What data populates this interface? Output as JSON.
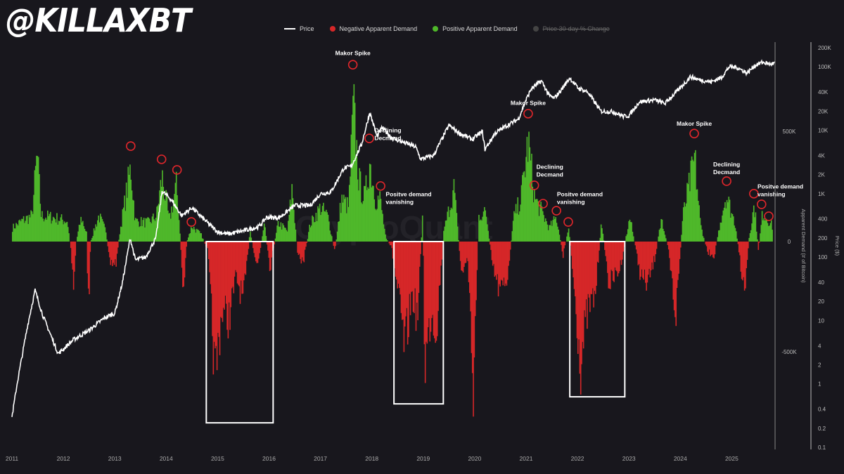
{
  "logo": "@KILLAXBT",
  "legend": [
    {
      "label": "Price",
      "type": "line",
      "color": "#ffffff"
    },
    {
      "label": "Negative Apparent Demand",
      "type": "dot",
      "color": "#d62728"
    },
    {
      "label": "Positive Apparent Demand",
      "type": "dot",
      "color": "#4fb82a"
    },
    {
      "label": "Price 30-day % Change",
      "type": "dot",
      "color": "#444444",
      "disabled": true
    }
  ],
  "watermark": "CryptoQuant",
  "colors": {
    "background": "#18171d",
    "positive": "#4fb82a",
    "negative": "#d62728",
    "price": "#ffffff",
    "highlight": "#e0262b",
    "box": "#ffffff"
  },
  "chart_data": {
    "type": "area",
    "title": "",
    "xlabel": "",
    "ylabel_left": "Apparent Demand (# of Bitcoin)",
    "ylabel_right": "Price ($)",
    "x_ticks": [
      "2011",
      "2012",
      "2013",
      "2014",
      "2015",
      "2016",
      "2017",
      "2018",
      "2019",
      "2020",
      "2021",
      "2022",
      "2023",
      "2024",
      "2025"
    ],
    "demand_ticks": [
      {
        "v": 500,
        "label": "500K"
      },
      {
        "v": 0,
        "label": "0"
      },
      {
        "v": -500,
        "label": "-500K"
      }
    ],
    "demand_ylim_k": [
      -950,
      880
    ],
    "price_ticks": [
      "200K",
      "100K",
      "40K",
      "20K",
      "10K",
      "4K",
      "2K",
      "1K",
      "400",
      "200",
      "100",
      "40",
      "20",
      "10",
      "4",
      "2",
      "1",
      "0.4",
      "0.2",
      "0.1"
    ],
    "price_tick_values": [
      200000,
      100000,
      40000,
      20000,
      10000,
      4000,
      2000,
      1000,
      400,
      200,
      100,
      40,
      20,
      10,
      4,
      2,
      1,
      0.4,
      0.2,
      0.1
    ],
    "price_ylim": [
      0.1,
      200000
    ],
    "demand_series_k": [
      [
        2011.0,
        80
      ],
      [
        2011.18,
        120
      ],
      [
        2011.38,
        150
      ],
      [
        2011.48,
        506
      ],
      [
        2011.56,
        150
      ],
      [
        2011.79,
        140
      ],
      [
        2012.07,
        120
      ],
      [
        2012.14,
        -60
      ],
      [
        2012.19,
        -240
      ],
      [
        2012.24,
        0
      ],
      [
        2012.34,
        140
      ],
      [
        2012.44,
        50
      ],
      [
        2012.48,
        -400
      ],
      [
        2012.52,
        0
      ],
      [
        2012.68,
        150
      ],
      [
        2012.82,
        60
      ],
      [
        2012.89,
        -130
      ],
      [
        2013.02,
        -120
      ],
      [
        2013.09,
        60
      ],
      [
        2013.3,
        433
      ],
      [
        2013.39,
        120
      ],
      [
        2013.64,
        110
      ],
      [
        2013.8,
        150
      ],
      [
        2013.91,
        380
      ],
      [
        2014.05,
        120
      ],
      [
        2014.19,
        330
      ],
      [
        2014.26,
        50
      ],
      [
        2014.32,
        -305
      ],
      [
        2014.39,
        0
      ],
      [
        2014.49,
        90
      ],
      [
        2014.67,
        40
      ],
      [
        2014.8,
        -50
      ],
      [
        2014.94,
        -800
      ],
      [
        2015.07,
        -400
      ],
      [
        2015.21,
        -450
      ],
      [
        2015.35,
        -200
      ],
      [
        2015.49,
        -350
      ],
      [
        2015.62,
        60
      ],
      [
        2015.76,
        -150
      ],
      [
        2015.9,
        100
      ],
      [
        2016.01,
        -150
      ],
      [
        2016.17,
        110
      ],
      [
        2016.35,
        60
      ],
      [
        2016.44,
        315
      ],
      [
        2016.54,
        -50
      ],
      [
        2016.65,
        -130
      ],
      [
        2016.79,
        100
      ],
      [
        2016.99,
        200
      ],
      [
        2017.13,
        150
      ],
      [
        2017.27,
        -60
      ],
      [
        2017.4,
        250
      ],
      [
        2017.54,
        200
      ],
      [
        2017.63,
        793
      ],
      [
        2017.74,
        350
      ],
      [
        2017.85,
        250
      ],
      [
        2017.95,
        468
      ],
      [
        2018.06,
        250
      ],
      [
        2018.15,
        250
      ],
      [
        2018.26,
        20
      ],
      [
        2018.37,
        -30
      ],
      [
        2018.5,
        -300
      ],
      [
        2018.63,
        -640
      ],
      [
        2018.77,
        -300
      ],
      [
        2018.88,
        -450
      ],
      [
        2018.98,
        170
      ],
      [
        2019.02,
        -720
      ],
      [
        2019.15,
        -400
      ],
      [
        2019.24,
        -520
      ],
      [
        2019.39,
        60
      ],
      [
        2019.59,
        315
      ],
      [
        2019.73,
        -180
      ],
      [
        2019.86,
        -100
      ],
      [
        2019.96,
        -853
      ],
      [
        2020.07,
        150
      ],
      [
        2020.21,
        170
      ],
      [
        2020.34,
        -150
      ],
      [
        2020.48,
        -300
      ],
      [
        2020.62,
        -220
      ],
      [
        2020.75,
        140
      ],
      [
        2020.89,
        250
      ],
      [
        2021.03,
        580
      ],
      [
        2021.16,
        250
      ],
      [
        2021.3,
        170
      ],
      [
        2021.44,
        80
      ],
      [
        2021.58,
        140
      ],
      [
        2021.71,
        -80
      ],
      [
        2021.82,
        90
      ],
      [
        2021.92,
        -250
      ],
      [
        2022.05,
        -704
      ],
      [
        2022.19,
        -400
      ],
      [
        2022.33,
        -320
      ],
      [
        2022.46,
        120
      ],
      [
        2022.6,
        -250
      ],
      [
        2022.81,
        -160
      ],
      [
        2023.01,
        140
      ],
      [
        2023.22,
        -200
      ],
      [
        2023.35,
        -250
      ],
      [
        2023.49,
        -100
      ],
      [
        2023.63,
        140
      ],
      [
        2023.76,
        -50
      ],
      [
        2023.9,
        -433
      ],
      [
        2024.04,
        150
      ],
      [
        2024.27,
        484
      ],
      [
        2024.38,
        100
      ],
      [
        2024.52,
        -60
      ],
      [
        2024.65,
        -80
      ],
      [
        2024.79,
        150
      ],
      [
        2024.88,
        274
      ],
      [
        2025.06,
        100
      ],
      [
        2025.24,
        -305
      ],
      [
        2025.33,
        30
      ],
      [
        2025.43,
        216
      ],
      [
        2025.51,
        -50
      ],
      [
        2025.59,
        170
      ],
      [
        2025.73,
        115
      ],
      [
        2025.79,
        80
      ]
    ],
    "price_series": [
      [
        2011.0,
        0.3
      ],
      [
        2011.1,
        1
      ],
      [
        2011.3,
        8
      ],
      [
        2011.45,
        30
      ],
      [
        2011.6,
        12
      ],
      [
        2011.9,
        3
      ],
      [
        2012.2,
        5
      ],
      [
        2012.5,
        7
      ],
      [
        2012.8,
        11
      ],
      [
        2013.0,
        13
      ],
      [
        2013.15,
        40
      ],
      [
        2013.3,
        200
      ],
      [
        2013.4,
        90
      ],
      [
        2013.6,
        100
      ],
      [
        2013.8,
        200
      ],
      [
        2013.92,
        1100
      ],
      [
        2014.1,
        800
      ],
      [
        2014.3,
        450
      ],
      [
        2014.5,
        600
      ],
      [
        2014.8,
        350
      ],
      [
        2015.0,
        250
      ],
      [
        2015.2,
        230
      ],
      [
        2015.5,
        260
      ],
      [
        2015.8,
        300
      ],
      [
        2015.95,
        420
      ],
      [
        2016.2,
        420
      ],
      [
        2016.5,
        650
      ],
      [
        2016.8,
        650
      ],
      [
        2017.0,
        1000
      ],
      [
        2017.2,
        1050
      ],
      [
        2017.45,
        2500
      ],
      [
        2017.6,
        2700
      ],
      [
        2017.8,
        6000
      ],
      [
        2017.96,
        19000
      ],
      [
        2018.1,
        8000
      ],
      [
        2018.2,
        11000
      ],
      [
        2018.4,
        7500
      ],
      [
        2018.6,
        6500
      ],
      [
        2018.85,
        5500
      ],
      [
        2018.95,
        3500
      ],
      [
        2019.2,
        4000
      ],
      [
        2019.5,
        12000
      ],
      [
        2019.7,
        9000
      ],
      [
        2019.95,
        7200
      ],
      [
        2020.15,
        9500
      ],
      [
        2020.2,
        5000
      ],
      [
        2020.4,
        9000
      ],
      [
        2020.6,
        11500
      ],
      [
        2020.85,
        15000
      ],
      [
        2020.99,
        29000
      ],
      [
        2021.1,
        45000
      ],
      [
        2021.3,
        60000
      ],
      [
        2021.45,
        35000
      ],
      [
        2021.55,
        32000
      ],
      [
        2021.7,
        45000
      ],
      [
        2021.85,
        67000
      ],
      [
        2022.0,
        47000
      ],
      [
        2022.2,
        40000
      ],
      [
        2022.45,
        20000
      ],
      [
        2022.7,
        19500
      ],
      [
        2022.9,
        16500
      ],
      [
        2023.0,
        17000
      ],
      [
        2023.2,
        28000
      ],
      [
        2023.5,
        30000
      ],
      [
        2023.7,
        26500
      ],
      [
        2023.95,
        42000
      ],
      [
        2024.2,
        70000
      ],
      [
        2024.35,
        63000
      ],
      [
        2024.6,
        58000
      ],
      [
        2024.8,
        68000
      ],
      [
        2024.95,
        100000
      ],
      [
        2025.1,
        98000
      ],
      [
        2025.3,
        80000
      ],
      [
        2025.45,
        105000
      ],
      [
        2025.6,
        118000
      ],
      [
        2025.75,
        110000
      ],
      [
        2025.85,
        115000
      ]
    ],
    "highlight_circles": [
      [
        2013.31,
        433
      ],
      [
        2013.91,
        373
      ],
      [
        2014.21,
        325
      ],
      [
        2014.49,
        89
      ],
      [
        2017.63,
        802
      ],
      [
        2017.95,
        468
      ],
      [
        2018.17,
        252
      ],
      [
        2021.04,
        580
      ],
      [
        2021.16,
        255
      ],
      [
        2021.33,
        172
      ],
      [
        2021.59,
        140
      ],
      [
        2021.82,
        89
      ],
      [
        2024.27,
        490
      ],
      [
        2024.9,
        274
      ],
      [
        2025.43,
        217
      ],
      [
        2025.58,
        169
      ],
      [
        2025.72,
        115
      ]
    ],
    "annotations": [
      {
        "lines": [
          "Makor Spike"
        ],
        "x": 2017.63,
        "y": 845,
        "align": "middle"
      },
      {
        "lines": [
          "Declining",
          "Decmand"
        ],
        "x": 2018.05,
        "y": 495,
        "align": "start"
      },
      {
        "lines": [
          "Positve demand",
          "vanishing"
        ],
        "x": 2018.27,
        "y": 205,
        "align": "start"
      },
      {
        "lines": [
          "Makor Spike"
        ],
        "x": 2021.04,
        "y": 620,
        "align": "middle"
      },
      {
        "lines": [
          "Declining",
          "Decmand"
        ],
        "x": 2021.2,
        "y": 330,
        "align": "start"
      },
      {
        "lines": [
          "Positve demand",
          "vanishing"
        ],
        "x": 2021.6,
        "y": 205,
        "align": "start"
      },
      {
        "lines": [
          "Makor Spike"
        ],
        "x": 2024.27,
        "y": 525,
        "align": "middle"
      },
      {
        "lines": [
          "Declining",
          "Decmand"
        ],
        "x": 2024.9,
        "y": 340,
        "align": "middle"
      },
      {
        "lines": [
          "Positve demand",
          "vanishing"
        ],
        "x": 2025.5,
        "y": 240,
        "align": "start"
      }
    ],
    "boxes": [
      {
        "x0": 2014.78,
        "x1": 2016.08,
        "y0": 0,
        "y1": -822
      },
      {
        "x0": 2018.43,
        "x1": 2019.39,
        "y0": 0,
        "y1": -736
      },
      {
        "x0": 2021.85,
        "x1": 2022.92,
        "y0": 0,
        "y1": -704
      }
    ],
    "grid": false,
    "legend_position": "top-center"
  }
}
